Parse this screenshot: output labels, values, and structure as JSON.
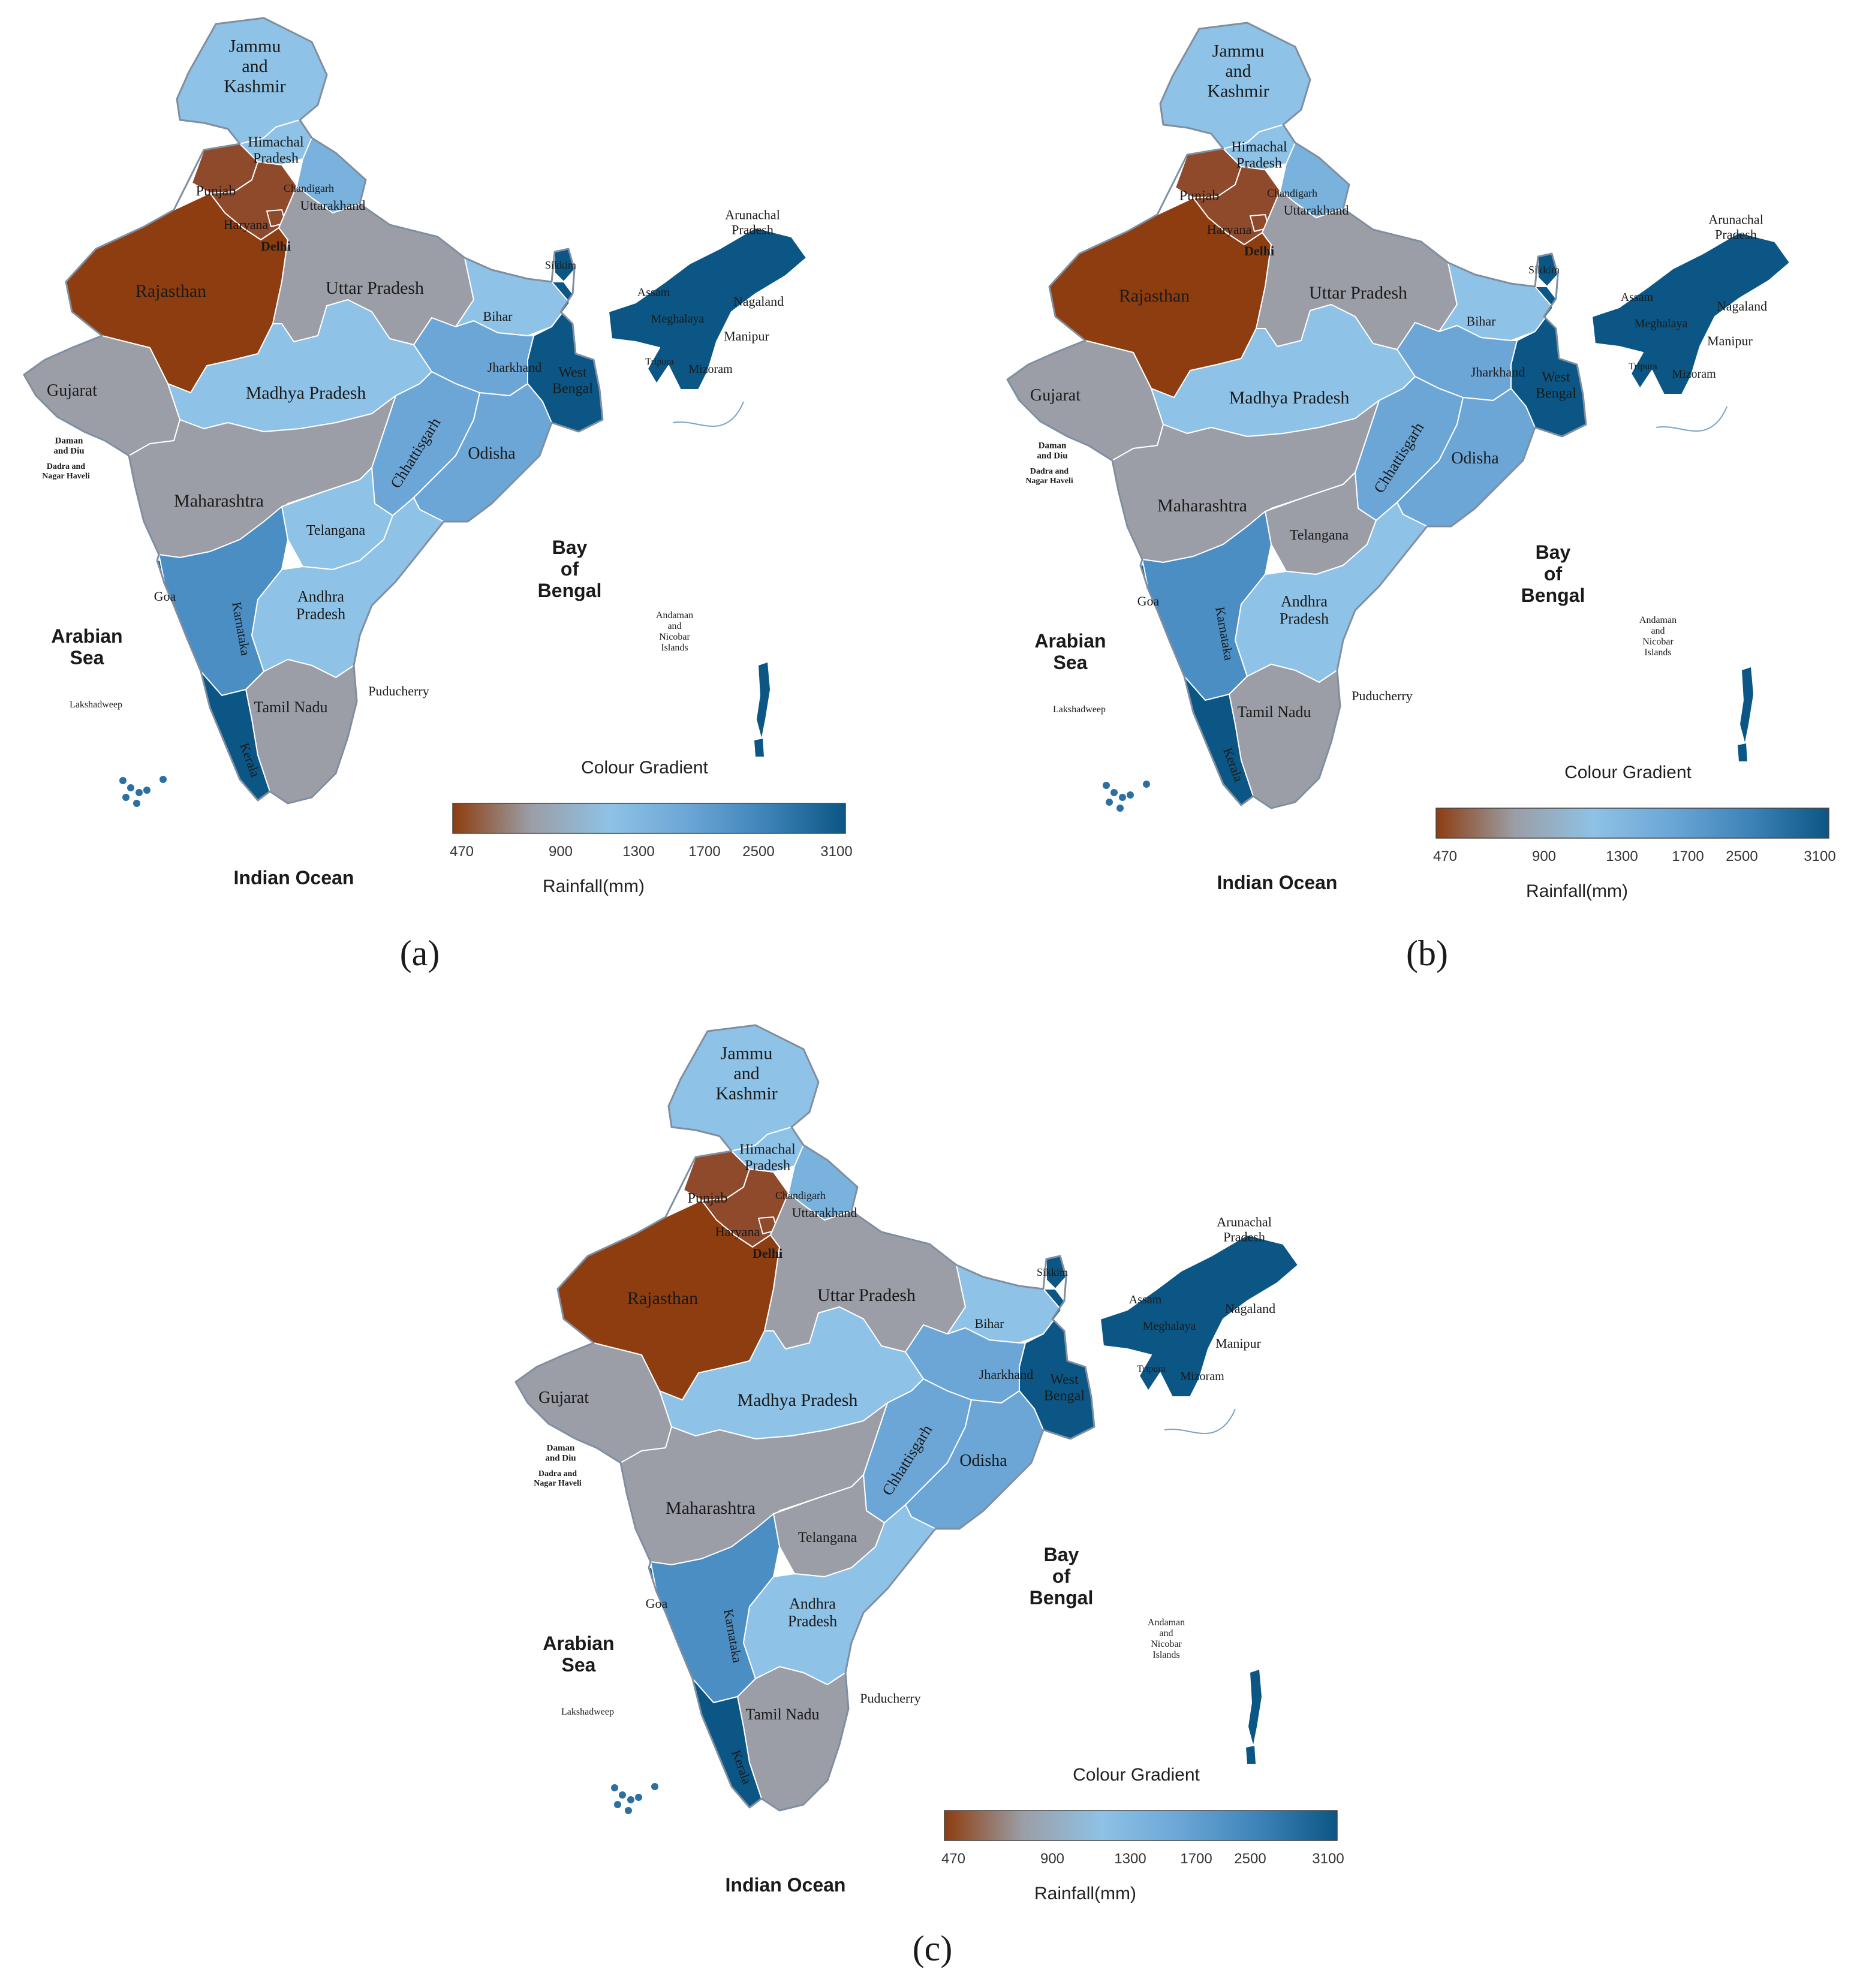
{
  "panels": [
    {
      "caption": "(a)",
      "colors": {
        "jk": "#8ec2e6",
        "hp": "#8ec2e6",
        "pb": "#8f4a2c",
        "ch": "#93aac3",
        "uk": "#79b2dd",
        "hr": "#8f4a2c",
        "dl": "#8f4a2c",
        "rj": "#8d3d10",
        "up": "#9b9ea6",
        "bh": "#8ec2e6",
        "sk": "#0b5684",
        "ne": "#0b5684",
        "wb": "#0b5684",
        "jh": "#6ba6d6",
        "gj": "#9b9ea6",
        "mp": "#8ec2e6",
        "mh": "#9b9ea6",
        "cg": "#6ba6d6",
        "od": "#6ba6d6",
        "tg": "#8ec2e6",
        "ka": "#4a8ec4",
        "ap": "#8ec2e6",
        "tn": "#9b9ea6",
        "kl": "#0b5684",
        "go": "#0b5684"
      }
    },
    {
      "caption": "(b)",
      "colors": {
        "jk": "#8ec2e6",
        "hp": "#8ec2e6",
        "pb": "#8f4a2c",
        "ch": "#93aac3",
        "uk": "#79b2dd",
        "hr": "#8f4a2c",
        "dl": "#8f4a2c",
        "rj": "#8d3d10",
        "up": "#9b9ea6",
        "bh": "#8ec2e6",
        "sk": "#0b5684",
        "ne": "#0b5684",
        "wb": "#0b5684",
        "jh": "#6ba6d6",
        "gj": "#9b9ea6",
        "mp": "#8ec2e6",
        "mh": "#9b9ea6",
        "cg": "#6ba6d6",
        "od": "#6ba6d6",
        "tg": "#9b9ea6",
        "ka": "#4a8ec4",
        "ap": "#8ec2e6",
        "tn": "#9b9ea6",
        "kl": "#0b5684",
        "go": "#0b5684"
      }
    },
    {
      "caption": "(c)",
      "colors": {
        "jk": "#8ec2e6",
        "hp": "#8ec2e6",
        "pb": "#8f4a2c",
        "ch": "#93aac3",
        "uk": "#79b2dd",
        "hr": "#8f4a2c",
        "dl": "#8f4a2c",
        "rj": "#8d3d10",
        "up": "#9b9ea6",
        "bh": "#8ec2e6",
        "sk": "#0b5684",
        "ne": "#0b5684",
        "wb": "#0b5684",
        "jh": "#6ba6d6",
        "gj": "#9b9ea6",
        "mp": "#8ec2e6",
        "mh": "#9b9ea6",
        "cg": "#6ba6d6",
        "od": "#6ba6d6",
        "tg": "#9b9ea6",
        "ka": "#4a8ec4",
        "ap": "#8ec2e6",
        "tn": "#9b9ea6",
        "kl": "#0b5684",
        "go": "#0b5684"
      }
    }
  ],
  "states": [
    {
      "id": "jk",
      "label": [
        "Jammu",
        "and",
        "Kashmir"
      ]
    },
    {
      "id": "hp",
      "label": [
        "Himachal",
        "Pradesh"
      ]
    },
    {
      "id": "pb",
      "label": [
        "Punjab"
      ]
    },
    {
      "id": "ch",
      "label": [
        "Chandigarh"
      ]
    },
    {
      "id": "uk",
      "label": [
        "Uttarakhand"
      ]
    },
    {
      "id": "hr",
      "label": [
        "Haryana"
      ]
    },
    {
      "id": "dl",
      "label": [
        "Delhi"
      ]
    },
    {
      "id": "rj",
      "label": [
        "Rajasthan"
      ]
    },
    {
      "id": "up",
      "label": [
        "Uttar Pradesh"
      ]
    },
    {
      "id": "bh",
      "label": [
        "Bihar"
      ]
    },
    {
      "id": "sk",
      "label": [
        "Sikkim"
      ]
    },
    {
      "id": "ar",
      "label": [
        "Arunachal",
        "Pradesh"
      ]
    },
    {
      "id": "as",
      "label": [
        "Assam"
      ]
    },
    {
      "id": "ml",
      "label": [
        "Meghalaya"
      ]
    },
    {
      "id": "nl",
      "label": [
        "Nagaland"
      ]
    },
    {
      "id": "mn",
      "label": [
        "Manipur"
      ]
    },
    {
      "id": "tr",
      "label": [
        "Tripura"
      ]
    },
    {
      "id": "mz",
      "label": [
        "Mizoram"
      ]
    },
    {
      "id": "wb",
      "label": [
        "West",
        "Bengal"
      ]
    },
    {
      "id": "jh",
      "label": [
        "Jharkhand"
      ]
    },
    {
      "id": "gj",
      "label": [
        "Gujarat"
      ]
    },
    {
      "id": "dd",
      "label": [
        "Daman",
        "and Diu"
      ]
    },
    {
      "id": "dn",
      "label": [
        "Dadra and",
        "Nagar Haveli"
      ]
    },
    {
      "id": "mp",
      "label": [
        "Madhya Pradesh"
      ]
    },
    {
      "id": "mh",
      "label": [
        "Maharashtra"
      ]
    },
    {
      "id": "cg",
      "label": [
        "Chhattisgarh"
      ]
    },
    {
      "id": "od",
      "label": [
        "Odisha"
      ]
    },
    {
      "id": "tg",
      "label": [
        "Telangana"
      ]
    },
    {
      "id": "go",
      "label": [
        "Goa"
      ]
    },
    {
      "id": "ka",
      "label": [
        "Karnataka"
      ]
    },
    {
      "id": "ap",
      "label": [
        "Andhra",
        "Pradesh"
      ]
    },
    {
      "id": "tn",
      "label": [
        "Tamil Nadu"
      ]
    },
    {
      "id": "py",
      "label": [
        "Puducherry"
      ]
    },
    {
      "id": "kl",
      "label": [
        "Kerala"
      ]
    },
    {
      "id": "ld",
      "label": [
        "Lakshadweep"
      ]
    },
    {
      "id": "an",
      "label": [
        "Andaman",
        "and",
        "Nicobar",
        "Islands"
      ]
    }
  ],
  "water_labels": {
    "arabian_sea": [
      "Arabian",
      "Sea"
    ],
    "bay_of_bengal": [
      "Bay",
      "of",
      "Bengal"
    ],
    "indian_ocean": "Indian Ocean"
  },
  "legend": {
    "title": "Colour Gradient",
    "ticks": [
      "470",
      "900",
      "1300",
      "1700",
      "2500",
      "3100"
    ],
    "axis_label": "Rainfall(mm)",
    "gradient_stops": [
      "#8d3d10",
      "#9b9ea6",
      "#8ec2e6",
      "#6ba6d6",
      "#3d83b8",
      "#0b5684"
    ]
  }
}
